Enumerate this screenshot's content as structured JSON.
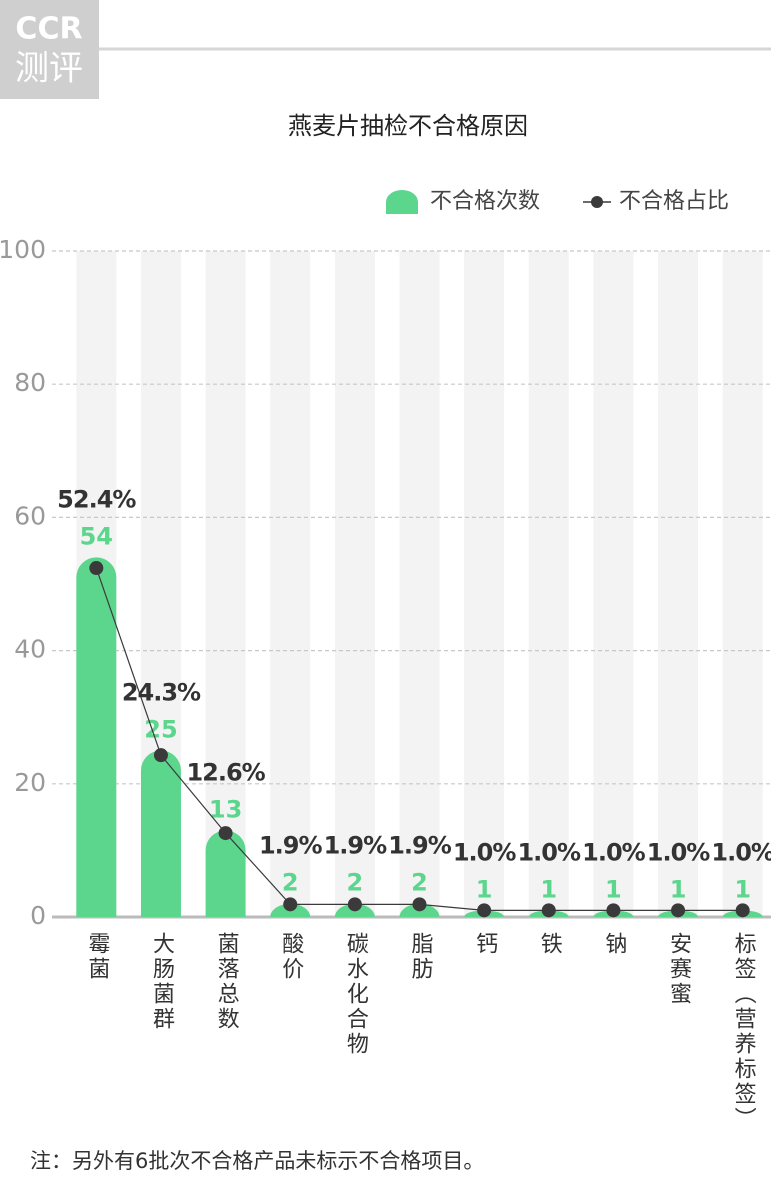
{
  "logo": {
    "top": "CCR",
    "bottom": "测评"
  },
  "chart_data": {
    "type": "bar-line",
    "title": "燕麦片抽检不合格原因",
    "categories": [
      "霉菌",
      "大肠菌群",
      "菌落总数",
      "酸价",
      "碳水化合物",
      "脂肪",
      "钙",
      "铁",
      "钠",
      "安赛蜜",
      "标签（营养标签）"
    ],
    "series": [
      {
        "name": "不合格次数",
        "type": "bar",
        "color": "#5cd68d",
        "values": [
          54,
          25,
          13,
          2,
          2,
          2,
          1,
          1,
          1,
          1,
          1
        ]
      },
      {
        "name": "不合格占比",
        "type": "line",
        "color": "#3a3a3a",
        "values": [
          52.4,
          24.3,
          12.6,
          1.9,
          1.9,
          1.9,
          1.0,
          1.0,
          1.0,
          1.0,
          1.0
        ],
        "value_labels": [
          "52.4%",
          "24.3%",
          "12.6%",
          "1.9%",
          "1.9%",
          "1.9%",
          "1.0%",
          "1.0%",
          "1.0%",
          "1.0%",
          "1.0%"
        ]
      }
    ],
    "ylim": [
      0,
      100
    ],
    "yticks": [
      0,
      20,
      40,
      60,
      80,
      100
    ],
    "grid": true,
    "legend": "top-right"
  },
  "note": "注：另外有6批次不合格产品未标示不合格项目。"
}
